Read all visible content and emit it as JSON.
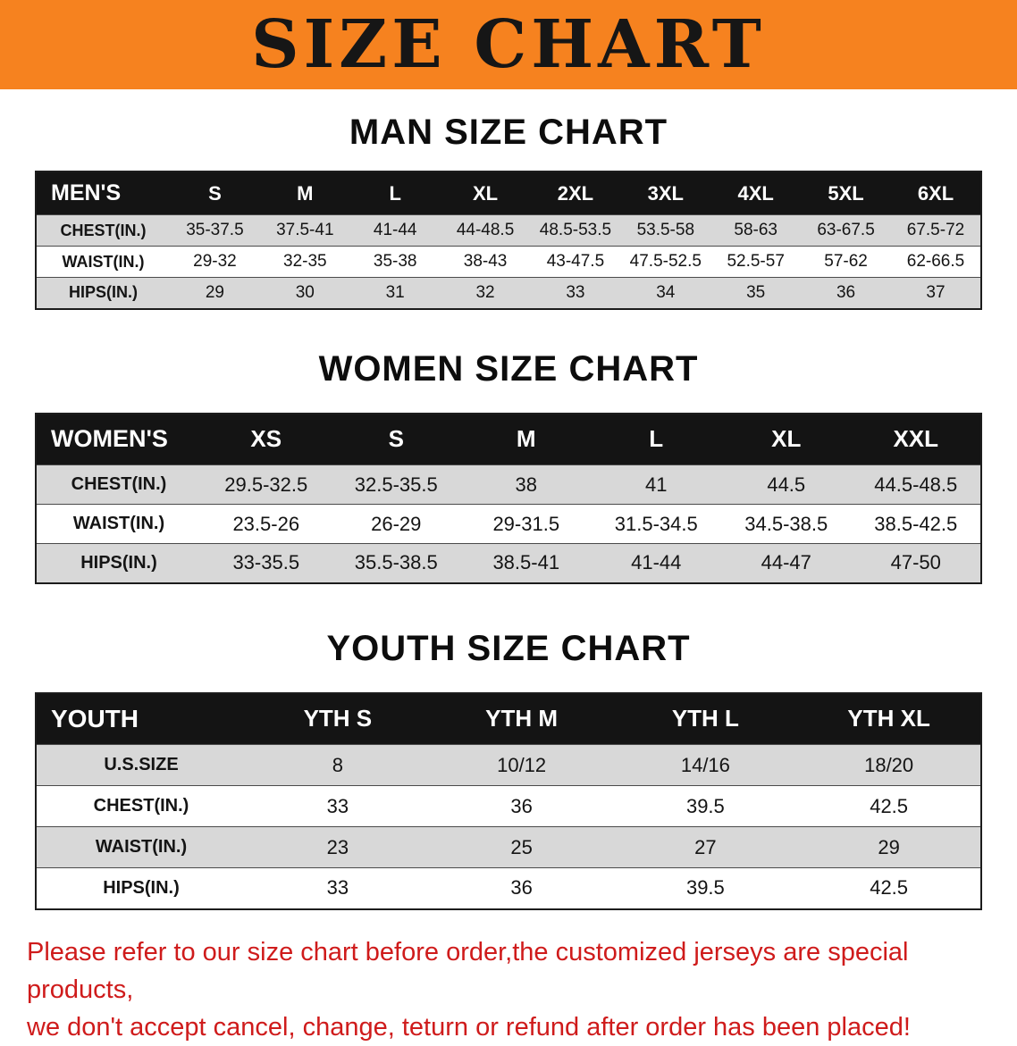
{
  "banner": {
    "title": "SIZE CHART"
  },
  "colors": {
    "banner-bg": "#f6821f",
    "header-bg": "#141414",
    "row-gray": "#d8d8d8",
    "footer-red": "#cf1b1b"
  },
  "sections": [
    {
      "title": "MAN SIZE CHART",
      "header_label": "MEN'S",
      "columns": [
        "S",
        "M",
        "L",
        "XL",
        "2XL",
        "3XL",
        "4XL",
        "5XL",
        "6XL"
      ],
      "rows": [
        {
          "label": "CHEST(IN.)",
          "values": [
            "35-37.5",
            "37.5-41",
            "41-44",
            "44-48.5",
            "48.5-53.5",
            "53.5-58",
            "58-63",
            "63-67.5",
            "67.5-72"
          ]
        },
        {
          "label": "WAIST(IN.)",
          "values": [
            "29-32",
            "32-35",
            "35-38",
            "38-43",
            "43-47.5",
            "47.5-52.5",
            "52.5-57",
            "57-62",
            "62-66.5"
          ]
        },
        {
          "label": "HIPS(IN.)",
          "values": [
            "29",
            "30",
            "31",
            "32",
            "33",
            "34",
            "35",
            "36",
            "37"
          ]
        }
      ]
    },
    {
      "title": "WOMEN SIZE CHART",
      "header_label": "WOMEN'S",
      "columns": [
        "XS",
        "S",
        "M",
        "L",
        "XL",
        "XXL"
      ],
      "rows": [
        {
          "label": "CHEST(IN.)",
          "values": [
            "29.5-32.5",
            "32.5-35.5",
            "38",
            "41",
            "44.5",
            "44.5-48.5"
          ]
        },
        {
          "label": "WAIST(IN.)",
          "values": [
            "23.5-26",
            "26-29",
            "29-31.5",
            "31.5-34.5",
            "34.5-38.5",
            "38.5-42.5"
          ]
        },
        {
          "label": "HIPS(IN.)",
          "values": [
            "33-35.5",
            "35.5-38.5",
            "38.5-41",
            "41-44",
            "44-47",
            "47-50"
          ]
        }
      ]
    },
    {
      "title": "YOUTH SIZE CHART",
      "header_label": "YOUTH",
      "columns": [
        "YTH S",
        "YTH M",
        "YTH L",
        "YTH XL"
      ],
      "rows": [
        {
          "label": "U.S.SIZE",
          "values": [
            "8",
            "10/12",
            "14/16",
            "18/20"
          ]
        },
        {
          "label": "CHEST(IN.)",
          "values": [
            "33",
            "36",
            "39.5",
            "42.5"
          ]
        },
        {
          "label": "WAIST(IN.)",
          "values": [
            "23",
            "25",
            "27",
            "29"
          ]
        },
        {
          "label": "HIPS(IN.)",
          "values": [
            "33",
            "36",
            "39.5",
            "42.5"
          ]
        }
      ]
    }
  ],
  "footer": {
    "lines": [
      "Please refer to our size chart before order,the customized jerseys are special products,",
      "we don't accept cancel, change, teturn or refund after order has been placed!"
    ]
  }
}
